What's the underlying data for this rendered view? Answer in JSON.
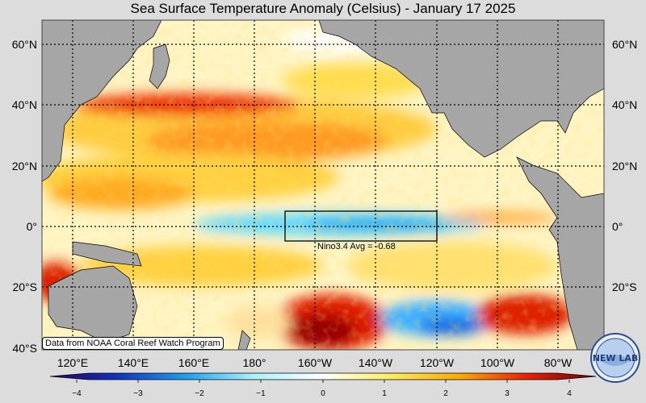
{
  "title": "Sea Surface Temperature Anomaly (Celsius) - January 17 2025",
  "lat_labels": [
    "60°N",
    "40°N",
    "20°N",
    "0°",
    "20°S",
    "40°S"
  ],
  "lon_labels": [
    "120°E",
    "140°E",
    "160°E",
    "180°",
    "160°W",
    "140°W",
    "120°W",
    "100°W",
    "80°W"
  ],
  "colorbar": {
    "ticks": [
      "−4",
      "−3",
      "−2",
      "−1",
      "0",
      "1",
      "2",
      "3",
      "4"
    ],
    "range": [
      -4,
      4
    ],
    "colors": [
      "#2a0060",
      "#1030c0",
      "#1ea0f0",
      "#aaf0ff",
      "#ffffff",
      "#ffee60",
      "#ffaa00",
      "#ee2200",
      "#700000"
    ]
  },
  "nino_label": "Nino3.4 Avg = -0.68",
  "credit": "Data from NOAA Coral Reef Watch Program",
  "logo_text": "NEW LAB",
  "colors": {
    "land": "#a6a6a6",
    "ocean_base": "#fff4c4",
    "background": "#dcdcdc"
  }
}
